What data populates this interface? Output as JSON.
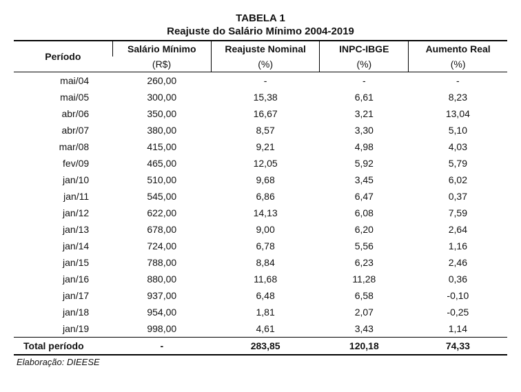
{
  "title_line1": "TABELA 1",
  "title_line2": "Reajuste do Salário Mínimo 2004-2019",
  "columns": {
    "periodo": "Período",
    "salario": "Salário Mínimo",
    "salario_unit": "(R$)",
    "reajuste": "Reajuste Nominal",
    "reajuste_unit": "(%)",
    "inpc": "INPC-IBGE",
    "inpc_unit": "(%)",
    "aumento": "Aumento Real",
    "aumento_unit": "(%)"
  },
  "rows": [
    {
      "periodo": "mai/04",
      "salario": "260,00",
      "reajuste": "-",
      "inpc": "-",
      "aumento": "-"
    },
    {
      "periodo": "mai/05",
      "salario": "300,00",
      "reajuste": "15,38",
      "inpc": "6,61",
      "aumento": "8,23"
    },
    {
      "periodo": "abr/06",
      "salario": "350,00",
      "reajuste": "16,67",
      "inpc": "3,21",
      "aumento": "13,04"
    },
    {
      "periodo": "abr/07",
      "salario": "380,00",
      "reajuste": "8,57",
      "inpc": "3,30",
      "aumento": "5,10"
    },
    {
      "periodo": "mar/08",
      "salario": "415,00",
      "reajuste": "9,21",
      "inpc": "4,98",
      "aumento": "4,03"
    },
    {
      "periodo": "fev/09",
      "salario": "465,00",
      "reajuste": "12,05",
      "inpc": "5,92",
      "aumento": "5,79"
    },
    {
      "periodo": "jan/10",
      "salario": "510,00",
      "reajuste": "9,68",
      "inpc": "3,45",
      "aumento": "6,02"
    },
    {
      "periodo": "jan/11",
      "salario": "545,00",
      "reajuste": "6,86",
      "inpc": "6,47",
      "aumento": "0,37"
    },
    {
      "periodo": "jan/12",
      "salario": "622,00",
      "reajuste": "14,13",
      "inpc": "6,08",
      "aumento": "7,59"
    },
    {
      "periodo": "jan/13",
      "salario": "678,00",
      "reajuste": "9,00",
      "inpc": "6,20",
      "aumento": "2,64"
    },
    {
      "periodo": "jan/14",
      "salario": "724,00",
      "reajuste": "6,78",
      "inpc": "5,56",
      "aumento": "1,16"
    },
    {
      "periodo": "jan/15",
      "salario": "788,00",
      "reajuste": "8,84",
      "inpc": "6,23",
      "aumento": "2,46"
    },
    {
      "periodo": "jan/16",
      "salario": "880,00",
      "reajuste": "11,68",
      "inpc": "11,28",
      "aumento": "0,36"
    },
    {
      "periodo": "jan/17",
      "salario": "937,00",
      "reajuste": "6,48",
      "inpc": "6,58",
      "aumento": "-0,10"
    },
    {
      "periodo": "jan/18",
      "salario": "954,00",
      "reajuste": "1,81",
      "inpc": "2,07",
      "aumento": "-0,25"
    },
    {
      "periodo": "jan/19",
      "salario": "998,00",
      "reajuste": "4,61",
      "inpc": "3,43",
      "aumento": "1,14"
    }
  ],
  "total": {
    "label": "Total período",
    "salario": "-",
    "reajuste": "283,85",
    "inpc": "120,18",
    "aumento": "74,33"
  },
  "source": "Elaboração: DIEESE"
}
